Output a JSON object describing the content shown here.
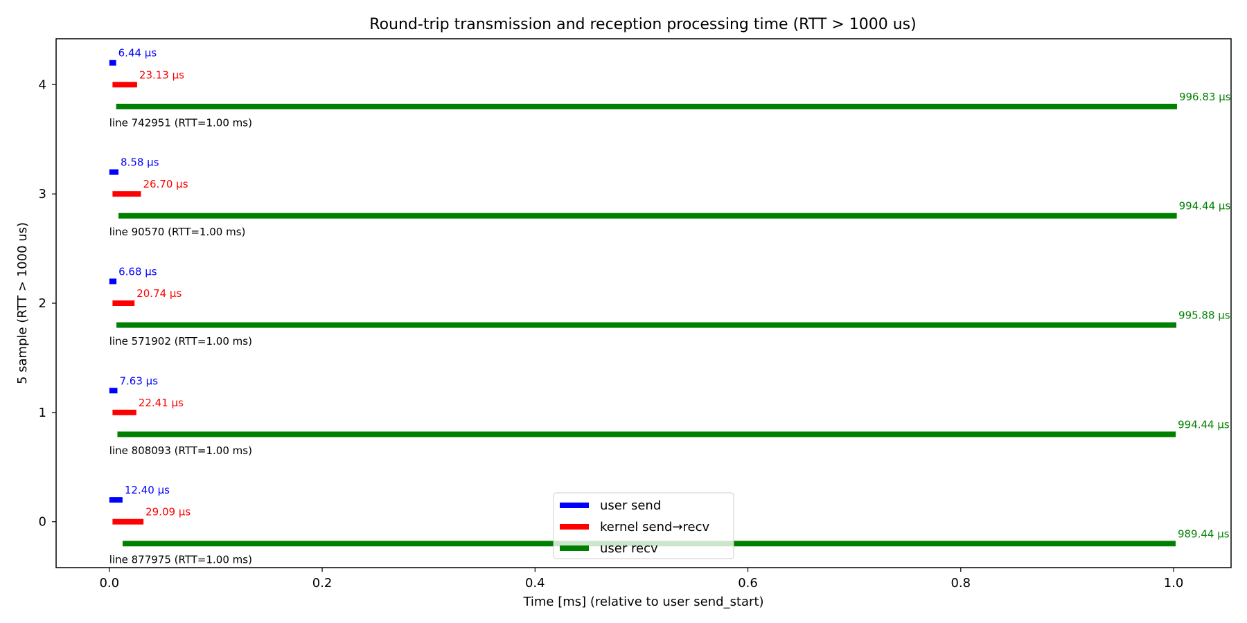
{
  "chart_data": {
    "type": "bar",
    "orientation": "horizontal-timeline",
    "title": "Round-trip transmission and reception processing time (RTT > 1000 us)",
    "xlabel": "Time [ms] (relative to user send_start)",
    "ylabel": "5 sample (RTT > 1000 us)",
    "xlim": [
      -0.05,
      1.054
    ],
    "ylim": [
      -0.42,
      4.42
    ],
    "xticks": [
      "0.0",
      "0.2",
      "0.4",
      "0.6",
      "0.8",
      "1.0"
    ],
    "xtick_values": [
      0.0,
      0.2,
      0.4,
      0.6,
      0.8,
      1.0
    ],
    "yticks": [
      "0",
      "1",
      "2",
      "3",
      "4"
    ],
    "ytick_values": [
      0,
      1,
      2,
      3,
      4
    ],
    "grid": false,
    "legend_placement": "lower-center",
    "series": [
      {
        "name": "user send",
        "color": "#0000ff",
        "y_offset": 0.2
      },
      {
        "name": "kernel send→recv",
        "color": "#ff0000",
        "y_offset": 0.0
      },
      {
        "name": "user recv",
        "color": "#008000",
        "y_offset": -0.2
      }
    ],
    "samples": [
      {
        "y": 0,
        "label": "line 877975 (RTT=1.00 ms)",
        "user_send": {
          "start": 0.0,
          "end": 0.0124,
          "text": "12.40 µs"
        },
        "kernel": {
          "start": 0.003,
          "end": 0.0321,
          "text": "29.09 µs"
        },
        "user_recv": {
          "start": 0.0125,
          "end": 1.0019,
          "text": "989.44 µs"
        }
      },
      {
        "y": 1,
        "label": "line 808093 (RTT=1.00 ms)",
        "user_send": {
          "start": 0.0,
          "end": 0.0076,
          "text": "7.63 µs"
        },
        "kernel": {
          "start": 0.003,
          "end": 0.0254,
          "text": "22.41 µs"
        },
        "user_recv": {
          "start": 0.0076,
          "end": 1.002,
          "text": "994.44 µs"
        }
      },
      {
        "y": 2,
        "label": "line 571902 (RTT=1.00 ms)",
        "user_send": {
          "start": 0.0,
          "end": 0.0067,
          "text": "6.68 µs"
        },
        "kernel": {
          "start": 0.003,
          "end": 0.0237,
          "text": "20.74 µs"
        },
        "user_recv": {
          "start": 0.0067,
          "end": 1.0026,
          "text": "995.88 µs"
        }
      },
      {
        "y": 3,
        "label": "line 90570 (RTT=1.00 ms)",
        "user_send": {
          "start": 0.0,
          "end": 0.0086,
          "text": "8.58 µs"
        },
        "kernel": {
          "start": 0.003,
          "end": 0.0297,
          "text": "26.70 µs"
        },
        "user_recv": {
          "start": 0.0086,
          "end": 1.003,
          "text": "994.44 µs"
        }
      },
      {
        "y": 4,
        "label": "line 742951 (RTT=1.00 ms)",
        "user_send": {
          "start": 0.0,
          "end": 0.0064,
          "text": "6.44 µs"
        },
        "kernel": {
          "start": 0.003,
          "end": 0.0261,
          "text": "23.13 µs"
        },
        "user_recv": {
          "start": 0.0064,
          "end": 1.0032,
          "text": "996.83 µs"
        }
      }
    ]
  }
}
